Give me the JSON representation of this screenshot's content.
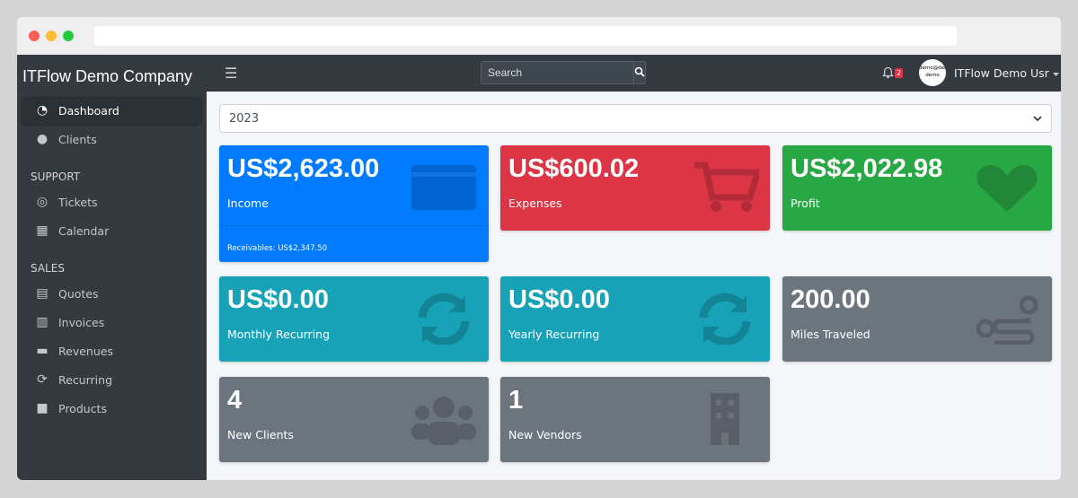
{
  "colors": {
    "primary": "#007bff",
    "danger": "#dc3545",
    "success": "#28a745",
    "info": "#17a2b8",
    "secondary": "#6c757d",
    "sidebar": "#343a40"
  },
  "sidebar": {
    "brand": "ITFlow Demo Company",
    "items": [
      {
        "label": "Dashboard",
        "icon": "tachometer-icon"
      },
      {
        "label": "Clients",
        "icon": "users-icon"
      }
    ],
    "support_header": "SUPPORT",
    "support": [
      {
        "label": "Tickets",
        "icon": "life-ring-icon"
      },
      {
        "label": "Calendar",
        "icon": "calendar-icon"
      }
    ],
    "sales_header": "SALES",
    "sales": [
      {
        "label": "Quotes",
        "icon": "file-icon"
      },
      {
        "label": "Invoices",
        "icon": "invoice-icon"
      },
      {
        "label": "Revenues",
        "icon": "credit-card-icon"
      },
      {
        "label": "Recurring",
        "icon": "sync-icon"
      },
      {
        "label": "Products",
        "icon": "box-icon"
      }
    ]
  },
  "navbar": {
    "search_placeholder": "Search",
    "notifications": "2",
    "avatar_text": "demo@demo demo",
    "user": "ITFlow Demo Usr"
  },
  "year_select": "2023",
  "cards": [
    {
      "value": "US$2,623.00",
      "label": "Income",
      "footer": "Receivables: US$2,347.50",
      "icon": "credit-card-icon"
    },
    {
      "value": "US$600.02",
      "label": "Expenses",
      "icon": "shopping-cart-icon"
    },
    {
      "value": "US$2,022.98",
      "label": "Profit",
      "icon": "heart-icon"
    },
    {
      "value": "US$0.00",
      "label": "Monthly Recurring",
      "icon": "sync-icon"
    },
    {
      "value": "US$0.00",
      "label": "Yearly Recurring",
      "icon": "sync-icon"
    },
    {
      "value": "200.00",
      "label": "Miles Traveled",
      "icon": "route-icon"
    },
    {
      "value": "4",
      "label": "New Clients",
      "icon": "users-icon"
    },
    {
      "value": "1",
      "label": "New Vendors",
      "icon": "building-icon"
    }
  ]
}
